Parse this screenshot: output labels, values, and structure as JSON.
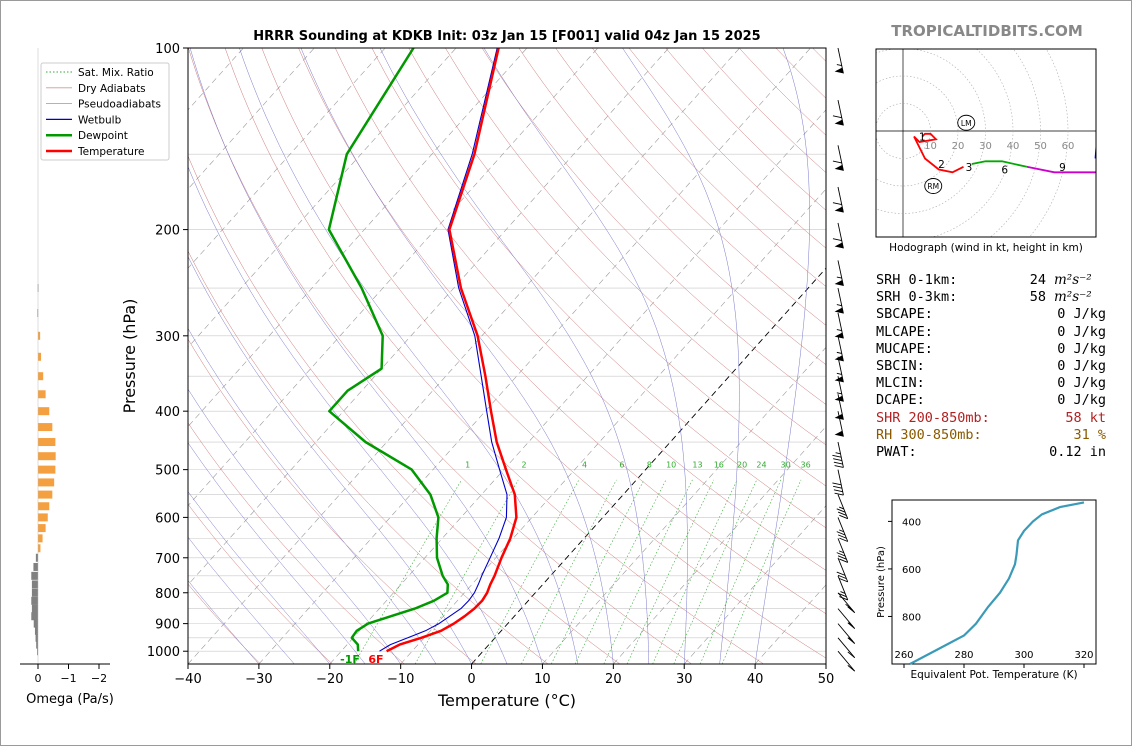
{
  "title": "HRRR Sounding at KDKB Init: 03z Jan 15 [F001] valid 04z Jan 15 2025",
  "watermark": "TROPICALTIDBITS.COM",
  "colors": {
    "temperature": "#ff0000",
    "dewpoint": "#009900",
    "wetbulb": "#0000cc",
    "dry_adiabat": "#cc6666",
    "moist_adiabat": "#7777cc",
    "mixing_ratio": "#33aa33",
    "isotherm": "#000000",
    "omega_pos": "#f5a040",
    "omega_neg": "#808080",
    "theta_e": "#3a9ab8",
    "shr": "#b22222",
    "rh": "#8b5a00"
  },
  "legend": [
    {
      "label": "Sat. Mix. Ratio",
      "style": "dotted",
      "color": "#33aa33"
    },
    {
      "label": "Dry Adiabats",
      "style": "solid-thin",
      "color": "#cc9999"
    },
    {
      "label": "Pseudoadiabats",
      "style": "solid-thin",
      "color": "#9999aa"
    },
    {
      "label": "Wetbulb",
      "style": "solid",
      "color": "#0000cc"
    },
    {
      "label": "Dewpoint",
      "style": "thick",
      "color": "#009900"
    },
    {
      "label": "Temperature",
      "style": "thick",
      "color": "#ff0000"
    }
  ],
  "chart_data": [
    {
      "type": "line",
      "name": "skewt",
      "ylabel": "Pressure (hPa)",
      "xlabel": "Temperature (°C)",
      "xlim": [
        -40,
        50
      ],
      "ylim": [
        1050,
        100
      ],
      "y_scale": "log",
      "x_ticks": [
        -40,
        -30,
        -20,
        -10,
        0,
        10,
        20,
        30,
        40,
        50
      ],
      "x_tick_labels": [
        "−40",
        "−30",
        "−20",
        "−10",
        "0",
        "10",
        "20",
        "30",
        "40",
        "50"
      ],
      "y_ticks": [
        100,
        200,
        300,
        400,
        500,
        600,
        700,
        800,
        900,
        1000
      ],
      "series": [
        {
          "name": "Temperature",
          "p": [
            1000,
            975,
            950,
            925,
            900,
            875,
            850,
            825,
            800,
            775,
            750,
            700,
            650,
            600,
            550,
            500,
            450,
            400,
            350,
            300,
            250,
            200,
            150,
            100
          ],
          "t": [
            -13.6,
            -12.6,
            -10.4,
            -8.5,
            -7.6,
            -7.0,
            -6.6,
            -6.5,
            -6.8,
            -7.4,
            -7.9,
            -9.2,
            -10.4,
            -12.2,
            -15.3,
            -19.7,
            -24.5,
            -29.2,
            -34.4,
            -40.6,
            -49.0,
            -58.0,
            -64.0,
            -74.0
          ]
        },
        {
          "name": "Dewpoint",
          "p": [
            1000,
            975,
            950,
            925,
            900,
            875,
            850,
            825,
            800,
            775,
            750,
            700,
            650,
            600,
            550,
            500,
            450,
            400,
            370,
            340,
            300,
            250,
            200,
            150,
            100
          ],
          "t": [
            -17.6,
            -18.5,
            -20.2,
            -20.4,
            -19.7,
            -17.4,
            -15.0,
            -13.3,
            -12.4,
            -13.4,
            -15.2,
            -18.3,
            -20.8,
            -23.2,
            -27.2,
            -33.0,
            -43.0,
            -52.0,
            -52.0,
            -50.0,
            -54.0,
            -63.0,
            -75.0,
            -82.0,
            -86.0
          ]
        },
        {
          "name": "Wetbulb",
          "p": [
            1000,
            975,
            950,
            925,
            900,
            875,
            850,
            825,
            800,
            775,
            750,
            700,
            650,
            600,
            550,
            500,
            450,
            400,
            350,
            300,
            250,
            200,
            150,
            100
          ],
          "t": [
            -14.6,
            -13.9,
            -12.3,
            -10.7,
            -9.7,
            -9.1,
            -8.5,
            -8.4,
            -8.6,
            -9.1,
            -9.7,
            -10.8,
            -12.0,
            -13.6,
            -16.4,
            -20.6,
            -25.2,
            -29.8,
            -35.0,
            -41.0,
            -49.3,
            -58.2,
            -64.3,
            -74.2
          ]
        }
      ],
      "surface_labels": {
        "dewpoint": "-1F",
        "temperature": "6F"
      },
      "mixing_ratio_labels": [
        "1",
        "2",
        "4",
        "6",
        "8",
        "10",
        "13",
        "16",
        "20",
        "24",
        "30",
        "36"
      ]
    },
    {
      "type": "bar",
      "name": "omega",
      "xlabel": "Omega (Pa/s)",
      "x_ticks": [
        "0",
        "−1",
        "−2"
      ],
      "xlim": [
        0.3,
        -2.6
      ],
      "levels": [
        250,
        275,
        300,
        325,
        350,
        375,
        400,
        425,
        450,
        475,
        500,
        525,
        550,
        575,
        600,
        625,
        650,
        675,
        700,
        725,
        750,
        775,
        800,
        825,
        850,
        875,
        900,
        925,
        950,
        975,
        1000
      ],
      "values": [
        0.01,
        0.02,
        -0.07,
        -0.1,
        -0.17,
        -0.25,
        -0.37,
        -0.47,
        -0.57,
        -0.58,
        -0.57,
        -0.53,
        -0.47,
        -0.37,
        -0.32,
        -0.25,
        -0.15,
        -0.08,
        0.07,
        0.15,
        0.22,
        0.2,
        0.2,
        0.22,
        0.2,
        0.22,
        0.14,
        0.1,
        0.08,
        0.06,
        0.03
      ]
    },
    {
      "type": "line",
      "name": "hodograph",
      "xlabel": "Hodograph (wind in kt, height in km)",
      "rings": [
        "10",
        "20",
        "30",
        "40",
        "50",
        "60"
      ],
      "storm_motion_labels": [
        "LM",
        "RM"
      ],
      "height_labels": [
        "1",
        "2",
        "3",
        "6",
        "9"
      ],
      "segments": [
        {
          "range": "0-1 km",
          "color": "#ff0000",
          "u": [
            7,
            8,
            10,
            12,
            6,
            4
          ],
          "v": [
            -2,
            -1,
            -1,
            -3,
            -4,
            -2
          ]
        },
        {
          "range": "1-3 km",
          "color": "#ff0000",
          "u": [
            4,
            8,
            13,
            18,
            22
          ],
          "v": [
            -2,
            -10,
            -14,
            -15,
            -13
          ]
        },
        {
          "range": "3-6 km",
          "color": "#00aa00",
          "u": [
            25,
            30,
            36,
            45
          ],
          "v": [
            -12,
            -11,
            -11,
            -13
          ]
        },
        {
          "range": "6-9 km",
          "color": "#cc00cc",
          "u": [
            45,
            55,
            62,
            70,
            76
          ],
          "v": [
            -13,
            -15,
            -15,
            -15,
            -14
          ]
        },
        {
          "range": "9+ km",
          "color": "#0000ff",
          "u": [
            70,
            71,
            76,
            79,
            82
          ],
          "v": [
            -10,
            3,
            3,
            3,
            0
          ]
        }
      ]
    },
    {
      "type": "line",
      "name": "theta_e",
      "xlabel": "Equivalent Pot. Temperature (K)",
      "ylabel": "Pressure (hPa)",
      "xlim": [
        256,
        324
      ],
      "ylim": [
        1000,
        310
      ],
      "x_ticks": [
        260,
        280,
        300,
        320
      ],
      "y_ticks": [
        400,
        600,
        800
      ],
      "theta_e": [
        262,
        268,
        274,
        280,
        284,
        288,
        292,
        295,
        297,
        297.5,
        298,
        300,
        303,
        306,
        312,
        320
      ],
      "p": [
        1000,
        960,
        920,
        880,
        830,
        760,
        700,
        640,
        580,
        540,
        480,
        440,
        400,
        370,
        340,
        320
      ]
    }
  ],
  "stats": [
    {
      "label": "SRH 0-1km:",
      "value": "24",
      "unit": "m²s⁻²",
      "color": "#000000"
    },
    {
      "label": "SRH 0-3km:",
      "value": "58",
      "unit": "m²s⁻²",
      "color": "#000000"
    },
    {
      "label": "SBCAPE:",
      "value": "0 J/kg",
      "color": "#000000"
    },
    {
      "label": "MLCAPE:",
      "value": "0 J/kg",
      "color": "#000000"
    },
    {
      "label": "MUCAPE:",
      "value": "0 J/kg",
      "color": "#000000"
    },
    {
      "label": "SBCIN:",
      "value": "0 J/kg",
      "color": "#000000"
    },
    {
      "label": "MLCIN:",
      "value": "0 J/kg",
      "color": "#000000"
    },
    {
      "label": "DCAPE:",
      "value": "0 J/kg",
      "color": "#000000"
    },
    {
      "label": "SHR 200-850mb:",
      "value": "58 kt",
      "color": "#b22222"
    },
    {
      "label": "RH 300-850mb:",
      "value": "31 %",
      "color": "#8b5a00"
    },
    {
      "label": "PWAT:",
      "value": "0.12 in",
      "color": "#000000"
    }
  ],
  "wind_barbs": [
    {
      "p": 100,
      "kt": 55
    },
    {
      "p": 122,
      "kt": 60
    },
    {
      "p": 145,
      "kt": 60
    },
    {
      "p": 170,
      "kt": 60
    },
    {
      "p": 195,
      "kt": 60
    },
    {
      "p": 225,
      "kt": 55
    },
    {
      "p": 250,
      "kt": 55
    },
    {
      "p": 275,
      "kt": 55
    },
    {
      "p": 300,
      "kt": 55
    },
    {
      "p": 325,
      "kt": 55
    },
    {
      "p": 350,
      "kt": 55
    },
    {
      "p": 375,
      "kt": 50
    },
    {
      "p": 400,
      "kt": 50
    },
    {
      "p": 450,
      "kt": 45
    },
    {
      "p": 500,
      "kt": 40
    },
    {
      "p": 550,
      "kt": 35
    },
    {
      "p": 600,
      "kt": 35
    },
    {
      "p": 650,
      "kt": 35
    },
    {
      "p": 700,
      "kt": 30
    },
    {
      "p": 750,
      "kt": 25
    },
    {
      "p": 800,
      "kt": 20
    },
    {
      "p": 850,
      "kt": 15
    },
    {
      "p": 900,
      "kt": 15
    },
    {
      "p": 950,
      "kt": 10
    },
    {
      "p": 1000,
      "kt": 10
    }
  ]
}
